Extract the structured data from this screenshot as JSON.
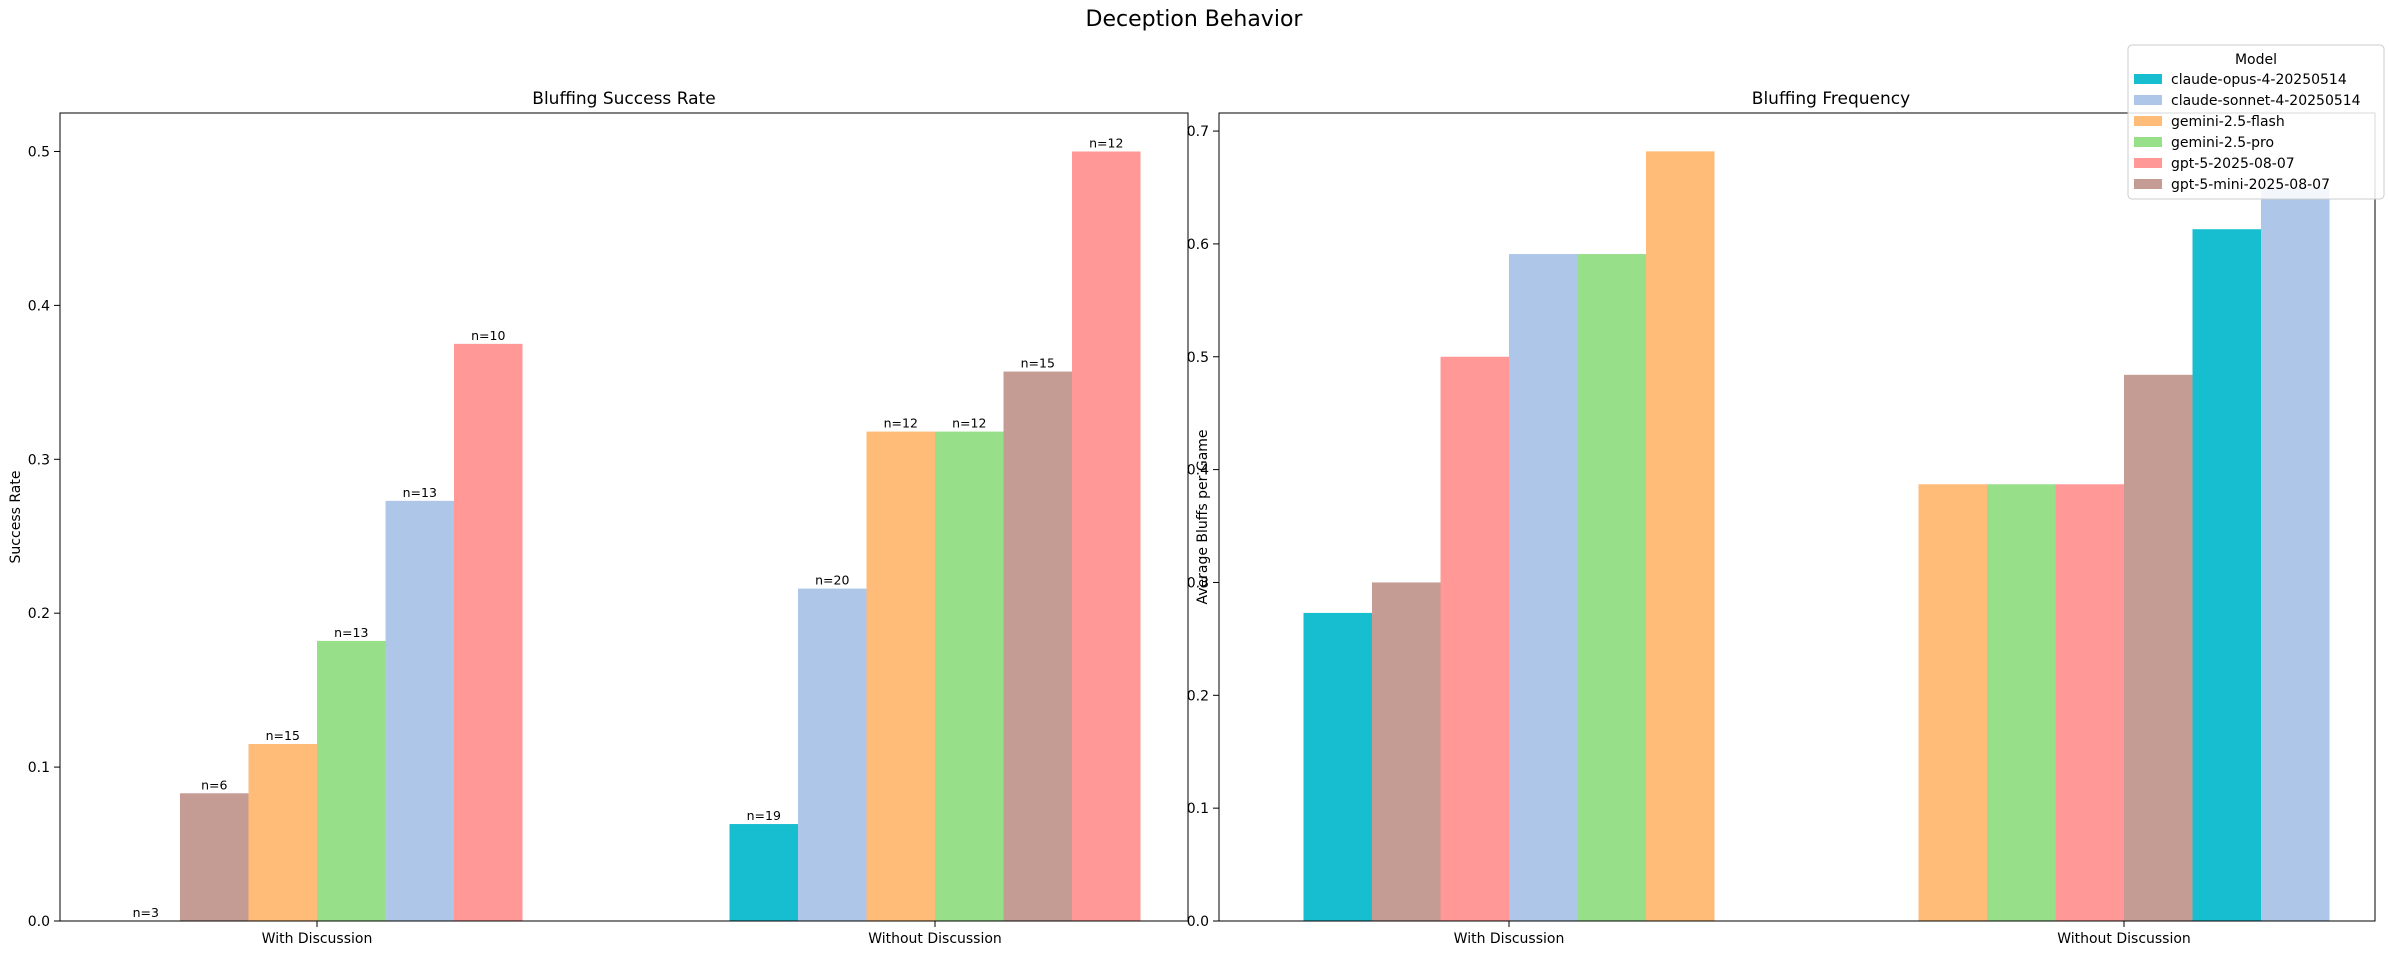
{
  "figure_title": "Deception Behavior",
  "legend": {
    "title": "Model",
    "placement": "top-right",
    "entries": [
      {
        "name": "claude-opus-4-20250514",
        "color": "#17becf"
      },
      {
        "name": "claude-sonnet-4-20250514",
        "color": "#aec7e8"
      },
      {
        "name": "gemini-2.5-flash",
        "color": "#ffbb78"
      },
      {
        "name": "gemini-2.5-pro",
        "color": "#98df8a"
      },
      {
        "name": "gpt-5-2025-08-07",
        "color": "#ff9896"
      },
      {
        "name": "gpt-5-mini-2025-08-07",
        "color": "#c49c94"
      }
    ]
  },
  "chart_data": [
    {
      "type": "bar",
      "title": "Bluffing Success Rate",
      "xlabel": "",
      "ylabel": "Success Rate",
      "ylim": [
        0,
        0.525
      ],
      "yticks": [
        "0.0",
        "0.1",
        "0.2",
        "0.3",
        "0.4",
        "0.5"
      ],
      "grid": false,
      "categories": [
        "With Discussion",
        "Without Discussion"
      ],
      "groups": [
        {
          "category": "With Discussion",
          "bars": [
            {
              "series": "claude-opus-4-20250514",
              "value": 0.0,
              "label": "n=3"
            },
            {
              "series": "gpt-5-mini-2025-08-07",
              "value": 0.083,
              "label": "n=6"
            },
            {
              "series": "gemini-2.5-flash",
              "value": 0.115,
              "label": "n=15"
            },
            {
              "series": "gemini-2.5-pro",
              "value": 0.182,
              "label": "n=13"
            },
            {
              "series": "claude-sonnet-4-20250514",
              "value": 0.273,
              "label": "n=13"
            },
            {
              "series": "gpt-5-2025-08-07",
              "value": 0.375,
              "label": "n=10"
            }
          ]
        },
        {
          "category": "Without Discussion",
          "bars": [
            {
              "series": "claude-opus-4-20250514",
              "value": 0.063,
              "label": "n=19"
            },
            {
              "series": "claude-sonnet-4-20250514",
              "value": 0.216,
              "label": "n=20"
            },
            {
              "series": "gemini-2.5-flash",
              "value": 0.318,
              "label": "n=12"
            },
            {
              "series": "gemini-2.5-pro",
              "value": 0.318,
              "label": "n=12"
            },
            {
              "series": "gpt-5-mini-2025-08-07",
              "value": 0.357,
              "label": "n=15"
            },
            {
              "series": "gpt-5-2025-08-07",
              "value": 0.5,
              "label": "n=12"
            }
          ]
        }
      ]
    },
    {
      "type": "bar",
      "title": "Bluffing Frequency",
      "xlabel": "",
      "ylabel": "Average Bluffs per Game",
      "ylim": [
        0,
        0.716
      ],
      "yticks": [
        "0.0",
        "0.1",
        "0.2",
        "0.3",
        "0.4",
        "0.5",
        "0.6",
        "0.7"
      ],
      "grid": false,
      "categories": [
        "With Discussion",
        "Without Discussion"
      ],
      "groups": [
        {
          "category": "With Discussion",
          "bars": [
            {
              "series": "claude-opus-4-20250514",
              "value": 0.273
            },
            {
              "series": "gpt-5-mini-2025-08-07",
              "value": 0.3
            },
            {
              "series": "gpt-5-2025-08-07",
              "value": 0.5
            },
            {
              "series": "claude-sonnet-4-20250514",
              "value": 0.591
            },
            {
              "series": "gemini-2.5-pro",
              "value": 0.591
            },
            {
              "series": "gemini-2.5-flash",
              "value": 0.682
            }
          ]
        },
        {
          "category": "Without Discussion",
          "bars": [
            {
              "series": "gemini-2.5-flash",
              "value": 0.387
            },
            {
              "series": "gemini-2.5-pro",
              "value": 0.387
            },
            {
              "series": "gpt-5-2025-08-07",
              "value": 0.387
            },
            {
              "series": "gpt-5-mini-2025-08-07",
              "value": 0.484
            },
            {
              "series": "claude-opus-4-20250514",
              "value": 0.613
            },
            {
              "series": "claude-sonnet-4-20250514",
              "value": 0.65
            }
          ]
        }
      ]
    }
  ]
}
